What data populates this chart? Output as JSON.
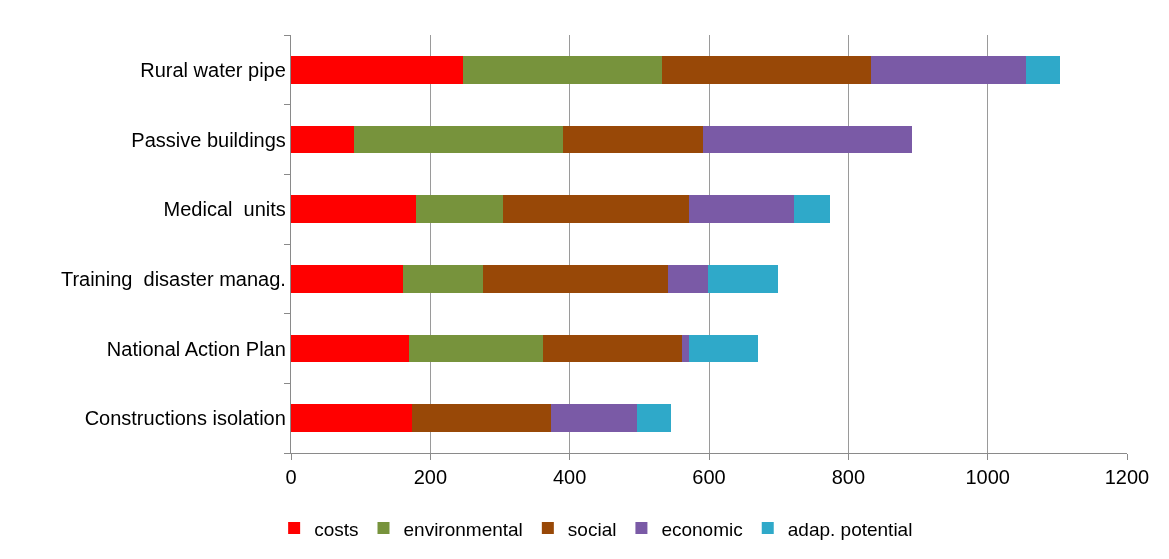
{
  "chart_data": {
    "type": "bar",
    "orientation": "horizontal",
    "stacked": true,
    "categories": [
      "Rural water pipe",
      "Passive buildings",
      "Medical  units",
      "Training  disaster manag.",
      "National Action Plan",
      "Constructions isolation"
    ],
    "series": [
      {
        "name": "costs",
        "color": "#ff0000",
        "values": [
          247,
          90,
          180,
          161,
          170,
          173
        ]
      },
      {
        "name": "environmental",
        "color": "#77933c",
        "values": [
          286,
          300,
          124,
          114,
          191,
          0
        ]
      },
      {
        "name": "social",
        "color": "#984807",
        "values": [
          300,
          201,
          267,
          266,
          200,
          200
        ]
      },
      {
        "name": "economic",
        "color": "#7a5aa6",
        "values": [
          222,
          300,
          151,
          58,
          10,
          123
        ]
      },
      {
        "name": "adap. potential",
        "color": "#2fa9c9",
        "values": [
          49,
          0,
          51,
          100,
          100,
          49
        ]
      }
    ],
    "xlim": [
      0,
      1200
    ],
    "xticks": [
      0,
      200,
      400,
      600,
      800,
      1000,
      1200
    ],
    "grid": "x",
    "legend": "bottom"
  }
}
